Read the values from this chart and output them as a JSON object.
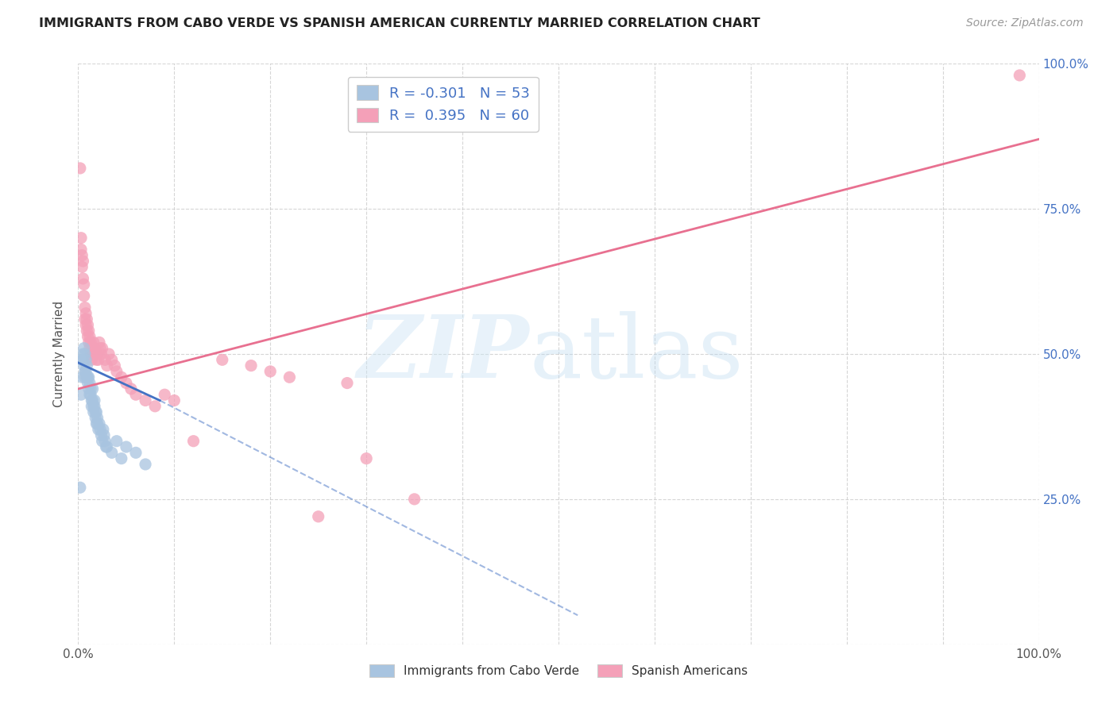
{
  "title": "IMMIGRANTS FROM CABO VERDE VS SPANISH AMERICAN CURRENTLY MARRIED CORRELATION CHART",
  "source": "Source: ZipAtlas.com",
  "ylabel": "Currently Married",
  "cabo_R": -0.301,
  "cabo_N": 53,
  "spanish_R": 0.395,
  "spanish_N": 60,
  "cabo_color": "#a8c4e0",
  "spanish_color": "#f4a0b8",
  "cabo_line_color": "#4472c4",
  "spanish_line_color": "#e87090",
  "cabo_label": "Immigrants from Cabo Verde",
  "spanish_label": "Spanish Americans",
  "xlim": [
    0.0,
    1.0
  ],
  "ylim": [
    0.0,
    1.0
  ],
  "ytick_positions": [
    0.0,
    0.25,
    0.5,
    0.75,
    1.0
  ],
  "ytick_labels": [
    "",
    "25.0%",
    "50.0%",
    "75.0%",
    "100.0%"
  ],
  "xtick_labels_left": "0.0%",
  "xtick_labels_right": "100.0%",
  "cabo_x": [
    0.002,
    0.003,
    0.004,
    0.004,
    0.005,
    0.005,
    0.006,
    0.006,
    0.007,
    0.007,
    0.007,
    0.008,
    0.008,
    0.009,
    0.009,
    0.01,
    0.01,
    0.011,
    0.011,
    0.012,
    0.012,
    0.013,
    0.013,
    0.014,
    0.014,
    0.015,
    0.015,
    0.016,
    0.016,
    0.017,
    0.017,
    0.018,
    0.018,
    0.019,
    0.019,
    0.02,
    0.02,
    0.021,
    0.022,
    0.023,
    0.024,
    0.025,
    0.026,
    0.027,
    0.028,
    0.029,
    0.03,
    0.035,
    0.04,
    0.045,
    0.05,
    0.06,
    0.07
  ],
  "cabo_y": [
    0.27,
    0.43,
    0.46,
    0.49,
    0.5,
    0.49,
    0.51,
    0.48,
    0.47,
    0.46,
    0.5,
    0.49,
    0.47,
    0.46,
    0.48,
    0.46,
    0.45,
    0.44,
    0.46,
    0.43,
    0.45,
    0.44,
    0.43,
    0.42,
    0.41,
    0.44,
    0.42,
    0.41,
    0.4,
    0.42,
    0.41,
    0.4,
    0.39,
    0.38,
    0.4,
    0.39,
    0.38,
    0.37,
    0.38,
    0.37,
    0.36,
    0.35,
    0.37,
    0.36,
    0.35,
    0.34,
    0.34,
    0.33,
    0.35,
    0.32,
    0.34,
    0.33,
    0.31
  ],
  "spanish_x": [
    0.002,
    0.003,
    0.003,
    0.004,
    0.004,
    0.005,
    0.005,
    0.006,
    0.006,
    0.007,
    0.007,
    0.008,
    0.008,
    0.009,
    0.009,
    0.01,
    0.01,
    0.011,
    0.011,
    0.012,
    0.012,
    0.013,
    0.013,
    0.014,
    0.014,
    0.015,
    0.016,
    0.017,
    0.018,
    0.019,
    0.02,
    0.021,
    0.022,
    0.023,
    0.024,
    0.025,
    0.028,
    0.03,
    0.032,
    0.035,
    0.038,
    0.04,
    0.045,
    0.05,
    0.055,
    0.06,
    0.07,
    0.08,
    0.09,
    0.1,
    0.12,
    0.15,
    0.18,
    0.2,
    0.22,
    0.25,
    0.28,
    0.3,
    0.35,
    0.98
  ],
  "spanish_y": [
    0.82,
    0.7,
    0.68,
    0.65,
    0.67,
    0.63,
    0.66,
    0.6,
    0.62,
    0.56,
    0.58,
    0.55,
    0.57,
    0.54,
    0.56,
    0.53,
    0.55,
    0.52,
    0.54,
    0.51,
    0.53,
    0.5,
    0.52,
    0.49,
    0.51,
    0.5,
    0.52,
    0.51,
    0.5,
    0.49,
    0.5,
    0.49,
    0.52,
    0.51,
    0.5,
    0.51,
    0.49,
    0.48,
    0.5,
    0.49,
    0.48,
    0.47,
    0.46,
    0.45,
    0.44,
    0.43,
    0.42,
    0.41,
    0.43,
    0.42,
    0.35,
    0.49,
    0.48,
    0.47,
    0.46,
    0.22,
    0.45,
    0.32,
    0.25,
    0.98
  ],
  "cabo_line_x_start": 0.0,
  "cabo_line_x_solid_end": 0.085,
  "cabo_line_x_dash_end": 0.52,
  "cabo_line_y_start": 0.485,
  "cabo_line_y_solid_end": 0.42,
  "cabo_line_y_dash_end": 0.05,
  "spanish_line_x_start": 0.0,
  "spanish_line_x_end": 1.0,
  "spanish_line_y_start": 0.44,
  "spanish_line_y_end": 0.87
}
